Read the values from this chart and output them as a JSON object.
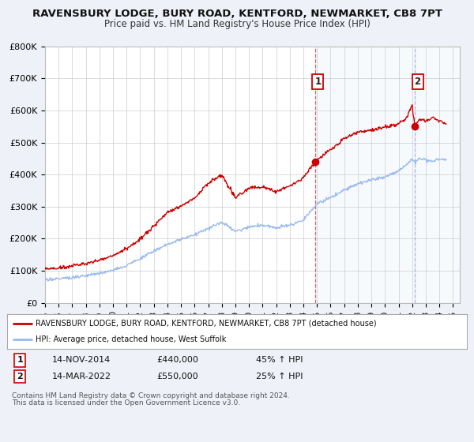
{
  "title": "RAVENSBURY LODGE, BURY ROAD, KENTFORD, NEWMARKET, CB8 7PT",
  "subtitle": "Price paid vs. HM Land Registry's House Price Index (HPI)",
  "background_color": "#eef2f8",
  "plot_bg_color": "#ffffff",
  "grid_color": "#cccccc",
  "red_line_color": "#cc0000",
  "blue_line_color": "#99bbee",
  "sale1_x": 2014.87,
  "sale1_y": 440000,
  "sale2_x": 2022.2,
  "sale2_y": 550000,
  "vline1_x": 2014.87,
  "vline2_x": 2022.2,
  "xmin": 1995,
  "xmax": 2025.5,
  "ymin": 0,
  "ymax": 800000,
  "yticks": [
    0,
    100000,
    200000,
    300000,
    400000,
    500000,
    600000,
    700000,
    800000
  ],
  "ytick_labels": [
    "£0",
    "£100K",
    "£200K",
    "£300K",
    "£400K",
    "£500K",
    "£600K",
    "£700K",
    "£800K"
  ],
  "xticks": [
    1995,
    1996,
    1997,
    1998,
    1999,
    2000,
    2001,
    2002,
    2003,
    2004,
    2005,
    2006,
    2007,
    2008,
    2009,
    2010,
    2011,
    2012,
    2013,
    2014,
    2015,
    2016,
    2017,
    2018,
    2019,
    2020,
    2021,
    2022,
    2023,
    2024,
    2025
  ],
  "legend_red_label": "RAVENSBURY LODGE, BURY ROAD, KENTFORD, NEWMARKET, CB8 7PT (detached house)",
  "legend_blue_label": "HPI: Average price, detached house, West Suffolk",
  "sale1_date": "14-NOV-2014",
  "sale1_price": "£440,000",
  "sale1_hpi": "45% ↑ HPI",
  "sale2_date": "14-MAR-2022",
  "sale2_price": "£550,000",
  "sale2_hpi": "25% ↑ HPI",
  "footnote1": "Contains HM Land Registry data © Crown copyright and database right 2024.",
  "footnote2": "This data is licensed under the Open Government Licence v3.0."
}
